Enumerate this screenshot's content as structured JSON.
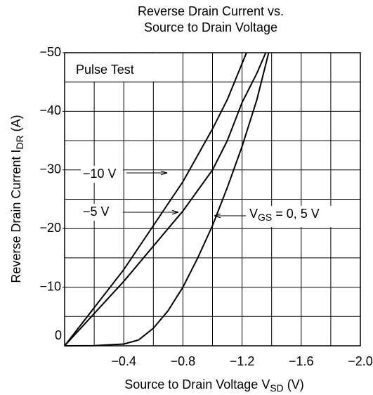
{
  "chart_data": {
    "type": "line",
    "title": [
      "Reverse Drain Current vs.",
      "Source to Drain Voltage"
    ],
    "x_label_parts": [
      "Source to Drain Voltage  V",
      "SD",
      "  (V)"
    ],
    "y_label_parts": [
      "Reverse Drain Current  I",
      "DR",
      "  (A)"
    ],
    "annotation": "Pulse Test",
    "xlim": [
      0,
      -2.0
    ],
    "ylim": [
      0,
      -50
    ],
    "xticks": [
      {
        "value": 0,
        "label": "0"
      },
      {
        "value": -0.4,
        "label": "−0.4"
      },
      {
        "value": -0.8,
        "label": "−0.8"
      },
      {
        "value": -1.2,
        "label": "−1.2"
      },
      {
        "value": -1.6,
        "label": "−1.6"
      },
      {
        "value": -2.0,
        "label": "−2.0"
      }
    ],
    "yticks": [
      {
        "value": 0,
        "label": "0"
      },
      {
        "value": -10,
        "label": "−10"
      },
      {
        "value": -20,
        "label": "−20"
      },
      {
        "value": -30,
        "label": "−30"
      },
      {
        "value": -40,
        "label": "−40"
      },
      {
        "value": -50,
        "label": "−50"
      }
    ],
    "xgrid": [
      -0.2,
      -0.4,
      -0.6,
      -0.8,
      -1.0,
      -1.2,
      -1.4,
      -1.6,
      -1.8
    ],
    "ygrid": [
      -5,
      -10,
      -15,
      -20,
      -25,
      -30,
      -35,
      -40,
      -45
    ],
    "grid": true,
    "color": "#000000",
    "series": [
      {
        "name": "−10 V",
        "x": [
          0,
          -0.2,
          -0.4,
          -0.6,
          -0.8,
          -1.0,
          -1.1,
          -1.23
        ],
        "values": [
          0,
          -6.5,
          -13,
          -20.5,
          -28,
          -37,
          -42,
          -50
        ]
      },
      {
        "name": "−5 V",
        "x": [
          0,
          -0.2,
          -0.4,
          -0.6,
          -0.8,
          -1.0,
          -1.1,
          -1.2,
          -1.3,
          -1.36
        ],
        "values": [
          0,
          -5.5,
          -11,
          -17,
          -23,
          -30,
          -35,
          -41.5,
          -46.5,
          -50
        ]
      },
      {
        "name_parts": [
          "V",
          "GS",
          " = 0, 5 V"
        ],
        "x": [
          0,
          -0.2,
          -0.4,
          -0.5,
          -0.6,
          -0.7,
          -0.8,
          -0.9,
          -1.0,
          -1.1,
          -1.2,
          -1.3,
          -1.38
        ],
        "values": [
          0,
          -0.02,
          -0.3,
          -1,
          -3,
          -6,
          -10,
          -15,
          -20.5,
          -27,
          -34,
          -42,
          -50
        ]
      }
    ]
  }
}
